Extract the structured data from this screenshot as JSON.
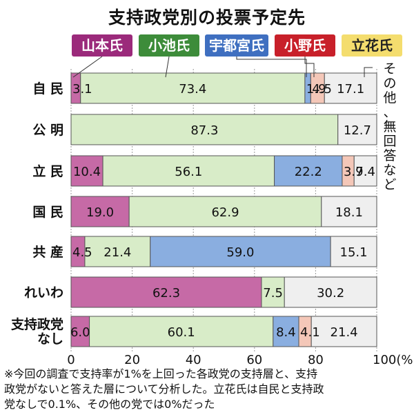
{
  "title": "支持政党別の投票予定先",
  "legend": [
    {
      "label": "山本氏",
      "color": "#c66aa6",
      "box_bg": "#9b2a7b",
      "text_color": "#ffffff"
    },
    {
      "label": "小池氏",
      "color": "#d8ecc8",
      "box_bg": "#3d8c3a",
      "text_color": "#ffffff"
    },
    {
      "label": "宇都宮氏",
      "color": "#8aaee0",
      "box_bg": "#3f6fc0",
      "text_color": "#ffffff"
    },
    {
      "label": "小野氏",
      "color": "#f4c7b8",
      "box_bg": "#c8202a",
      "text_color": "#ffffff"
    },
    {
      "label": "立花氏",
      "color": "#f5e08a",
      "box_bg": "#f4dd6e",
      "text_color": "#222222"
    }
  ],
  "other_label": "その他、無回答など",
  "other_color": "#efefef",
  "note_lines": [
    "※今回の調査で支持率が1%を上回った各政党の支持層と、支持",
    "政党がないと答えた層について分析した。立花氏は自民と支持政",
    "党なしで0.1%、その他の党では0%だった"
  ],
  "chart_data": {
    "type": "bar",
    "orientation": "horizontal",
    "stacked": true,
    "title": "支持政党別の投票予定先",
    "xlim": [
      0,
      100
    ],
    "x_ticks": [
      "0",
      "20",
      "40",
      "60",
      "80",
      "100(%)"
    ],
    "categories": [
      "自 民",
      "公 明",
      "立 民",
      "国 民",
      "共 産",
      "れいわ",
      "支持政党\nなし"
    ],
    "series": [
      {
        "name": "山本氏",
        "values": [
          3.1,
          0,
          10.4,
          19.0,
          4.5,
          62.3,
          6.0
        ],
        "labels": [
          "3.1",
          "",
          "10.4",
          "19.0",
          "4.5",
          "62.3",
          "6.0"
        ]
      },
      {
        "name": "小池氏",
        "values": [
          73.4,
          87.3,
          56.1,
          62.9,
          21.4,
          7.5,
          60.1
        ],
        "labels": [
          "73.4",
          "87.3",
          "56.1",
          "62.9",
          "21.4",
          "7.5",
          "60.1"
        ]
      },
      {
        "name": "宇都宮氏",
        "values": [
          1.9,
          0,
          22.2,
          0,
          59.0,
          0,
          8.4
        ],
        "labels": [
          "1.9",
          "",
          "22.2",
          "",
          "59.0",
          "",
          "8.4"
        ]
      },
      {
        "name": "小野氏",
        "values": [
          4.5,
          0,
          3.9,
          0,
          0,
          0,
          4.1
        ],
        "labels": [
          "4.5",
          "",
          "3.9",
          "",
          "",
          "",
          "4.1"
        ]
      },
      {
        "name": "その他、無回答など",
        "values": [
          17.1,
          12.7,
          7.4,
          18.1,
          15.1,
          30.2,
          21.4
        ],
        "labels": [
          "17.1",
          "12.7",
          "7.4",
          "18.1",
          "15.1",
          "30.2",
          "21.4"
        ]
      }
    ]
  }
}
